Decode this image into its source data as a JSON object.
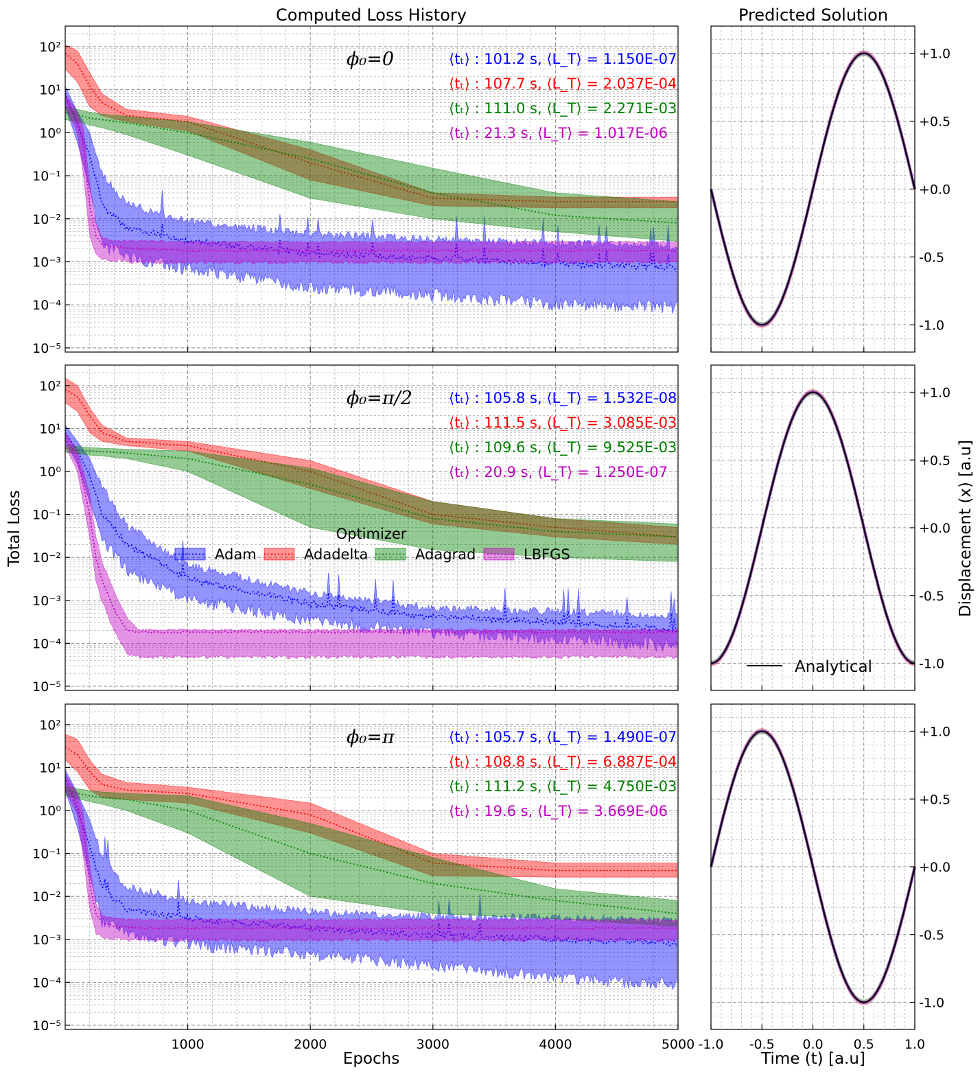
{
  "titles": {
    "left": "Computed Loss History",
    "right": "Predicted Solution"
  },
  "labels": {
    "left_y": "Total Loss",
    "left_x": "Epochs",
    "right_y": "Displacement (x) [a.u]",
    "right_x": "Time (t) [a.u]"
  },
  "legend": {
    "title": "Optimizer",
    "entries": [
      "Adam",
      "Adadelta",
      "Adagrad",
      "LBFGS"
    ]
  },
  "analytical_label": "Analytical",
  "colors": {
    "Adam": "#0000ff",
    "Adadelta": "#ff0000",
    "Adagrad": "#008000",
    "LBFGS": "#bf00bf",
    "Analytical": "#000000"
  },
  "chart_data": [
    {
      "type": "line",
      "panel": "loss",
      "row": 0,
      "phase_label": "ϕ₀=0",
      "xlabel": "",
      "ylabel": "Total Loss",
      "xlim": [
        0,
        5000
      ],
      "ylim": [
        8e-06,
        300
      ],
      "yscale": "log",
      "xticks": [
        1000,
        2000,
        3000,
        4000,
        5000
      ],
      "ytick_labels": [
        "10⁻⁵",
        "10⁻⁴",
        "10⁻³",
        "10⁻²",
        "10⁻¹",
        "10⁰",
        "10¹",
        "10²"
      ],
      "grid": true,
      "annotations": [
        {
          "series": "Adam",
          "time": "101.2 s",
          "loss": "1.150E-07"
        },
        {
          "series": "Adadelta",
          "time": "107.7 s",
          "loss": "2.037E-04"
        },
        {
          "series": "Adagrad",
          "time": "111.0 s",
          "loss": "2.271E-03"
        },
        {
          "series": "LBFGS",
          "time": "21.3 s",
          "loss": "1.017E-06"
        }
      ],
      "series": [
        {
          "name": "Adam",
          "x": [
            0,
            100,
            200,
            300,
            500,
            1000,
            2000,
            3000,
            4000,
            5000
          ],
          "mean": [
            8,
            1.5,
            0.3,
            0.02,
            0.006,
            0.003,
            0.0015,
            0.0012,
            0.0009,
            0.0007
          ],
          "lower": [
            4,
            0.6,
            0.05,
            0.003,
            0.0015,
            0.0008,
            0.0003,
            0.0002,
            0.00012,
            0.0001
          ],
          "upper": [
            12,
            3,
            1,
            0.1,
            0.02,
            0.008,
            0.004,
            0.003,
            0.0025,
            0.002
          ]
        },
        {
          "name": "Adadelta",
          "x": [
            0,
            100,
            200,
            300,
            500,
            1000,
            2000,
            3000,
            4000,
            5000
          ],
          "mean": [
            70,
            40,
            12,
            5,
            2.5,
            1.8,
            0.2,
            0.03,
            0.025,
            0.025
          ],
          "lower": [
            30,
            15,
            4,
            2.5,
            1.8,
            1.1,
            0.08,
            0.02,
            0.018,
            0.018
          ],
          "upper": [
            110,
            80,
            25,
            8,
            3.5,
            2.4,
            0.4,
            0.04,
            0.032,
            0.032
          ]
        },
        {
          "name": "Adagrad",
          "x": [
            0,
            100,
            200,
            300,
            500,
            1000,
            2000,
            3000,
            4000,
            5000
          ],
          "mean": [
            3,
            2.6,
            2.2,
            2,
            1.7,
            1,
            0.25,
            0.04,
            0.012,
            0.008
          ],
          "lower": [
            2,
            1.8,
            1.5,
            1.3,
            0.9,
            0.3,
            0.03,
            0.01,
            0.005,
            0.003
          ],
          "upper": [
            4,
            3.5,
            3,
            2.7,
            2.4,
            1.8,
            0.6,
            0.15,
            0.04,
            0.025
          ]
        },
        {
          "name": "LBFGS",
          "x": [
            0,
            100,
            150,
            200,
            250,
            300,
            400,
            600,
            1000,
            2000,
            5000
          ],
          "mean": [
            6,
            2,
            0.5,
            0.02,
            0.004,
            0.0025,
            0.0022,
            0.002,
            0.0018,
            0.0018,
            0.0018
          ],
          "lower": [
            4,
            1,
            0.1,
            0.004,
            0.0015,
            0.0012,
            0.0011,
            0.001,
            0.001,
            0.001,
            0.001
          ],
          "upper": [
            8,
            3,
            1.2,
            0.06,
            0.008,
            0.0035,
            0.003,
            0.003,
            0.0028,
            0.0028,
            0.0028
          ]
        }
      ]
    },
    {
      "type": "line",
      "panel": "solution",
      "row": 0,
      "xlim": [
        -1,
        1
      ],
      "ylim": [
        -1.2,
        1.2
      ],
      "xticks": [
        -1.0,
        -0.5,
        0.0,
        0.5,
        1.0
      ],
      "ytick_labels": [
        "-1.0",
        "-0.5",
        "+0.0",
        "+0.5",
        "+1.0"
      ],
      "grid": true,
      "series": [
        {
          "name": "Analytical",
          "function": "sin(pi*t)"
        }
      ]
    },
    {
      "type": "line",
      "panel": "loss",
      "row": 1,
      "phase_label": "ϕ₀=π/2",
      "xlabel": "",
      "ylabel": "Total Loss",
      "xlim": [
        0,
        5000
      ],
      "ylim": [
        8e-06,
        300
      ],
      "yscale": "log",
      "xticks": [
        1000,
        2000,
        3000,
        4000,
        5000
      ],
      "ytick_labels": [
        "10⁻⁵",
        "10⁻⁴",
        "10⁻³",
        "10⁻²",
        "10⁻¹",
        "10⁰",
        "10¹",
        "10²"
      ],
      "grid": true,
      "annotations": [
        {
          "series": "Adam",
          "time": "105.8 s",
          "loss": "1.532E-08"
        },
        {
          "series": "Adadelta",
          "time": "111.5 s",
          "loss": "3.085E-03"
        },
        {
          "series": "Adagrad",
          "time": "109.6 s",
          "loss": "9.525E-03"
        },
        {
          "series": "LBFGS",
          "time": "20.9 s",
          "loss": "1.250E-07"
        }
      ],
      "series": [
        {
          "name": "Adam",
          "x": [
            0,
            100,
            200,
            300,
            500,
            1000,
            2000,
            3000,
            4000,
            5000
          ],
          "mean": [
            8,
            3,
            0.8,
            0.1,
            0.02,
            0.003,
            0.0008,
            0.0004,
            0.0003,
            0.0002
          ],
          "lower": [
            5,
            1.5,
            0.2,
            0.03,
            0.006,
            0.0012,
            0.0004,
            0.0002,
            0.00015,
            0.0001
          ],
          "upper": [
            12,
            5,
            2,
            0.4,
            0.05,
            0.006,
            0.0013,
            0.0006,
            0.0005,
            0.0004
          ]
        },
        {
          "name": "Adadelta",
          "x": [
            0,
            100,
            200,
            300,
            500,
            1000,
            2000,
            3000,
            4000,
            5000
          ],
          "mean": [
            80,
            55,
            20,
            8,
            5,
            4,
            1,
            0.1,
            0.05,
            0.03
          ],
          "lower": [
            40,
            25,
            8,
            5,
            4,
            3,
            0.4,
            0.06,
            0.03,
            0.02
          ],
          "upper": [
            150,
            100,
            30,
            12,
            6,
            5,
            1.8,
            0.2,
            0.08,
            0.05
          ]
        },
        {
          "name": "Adagrad",
          "x": [
            0,
            100,
            200,
            300,
            500,
            1000,
            2000,
            3000,
            4000,
            5000
          ],
          "mean": [
            3.5,
            3.2,
            3,
            2.9,
            2.7,
            2,
            0.5,
            0.08,
            0.04,
            0.03
          ],
          "lower": [
            2.8,
            2.6,
            2.4,
            2.3,
            2,
            1,
            0.05,
            0.015,
            0.01,
            0.008
          ],
          "upper": [
            4.2,
            3.8,
            3.6,
            3.5,
            3.3,
            3,
            1.2,
            0.2,
            0.08,
            0.06
          ]
        },
        {
          "name": "LBFGS",
          "x": [
            0,
            100,
            200,
            250,
            300,
            400,
            500,
            600,
            1000,
            2000,
            5000
          ],
          "mean": [
            6,
            2,
            0.1,
            0.01,
            0.003,
            0.0006,
            0.0002,
            0.00018,
            0.00018,
            0.00018,
            0.00018
          ],
          "lower": [
            4,
            1,
            0.03,
            0.003,
            0.001,
            0.0002,
            6e-05,
            5e-05,
            5e-05,
            5e-05,
            5e-05
          ],
          "upper": [
            8,
            3,
            0.3,
            0.03,
            0.008,
            0.0015,
            0.0004,
            0.0002,
            0.0002,
            0.0002,
            0.0002
          ]
        }
      ]
    },
    {
      "type": "line",
      "panel": "solution",
      "row": 1,
      "xlim": [
        -1,
        1
      ],
      "ylim": [
        -1.2,
        1.2
      ],
      "xticks": [
        -1.0,
        -0.5,
        0.0,
        0.5,
        1.0
      ],
      "ytick_labels": [
        "-1.0",
        "-0.5",
        "+0.0",
        "+0.5",
        "+1.0"
      ],
      "grid": true,
      "series": [
        {
          "name": "Analytical",
          "function": "cos(pi*t)"
        }
      ]
    },
    {
      "type": "line",
      "panel": "loss",
      "row": 2,
      "phase_label": "ϕ₀=π",
      "xlabel": "Epochs",
      "ylabel": "Total Loss",
      "xlim": [
        0,
        5000
      ],
      "ylim": [
        8e-06,
        300
      ],
      "yscale": "log",
      "xticks": [
        1000,
        2000,
        3000,
        4000,
        5000
      ],
      "ytick_labels": [
        "10⁻⁵",
        "10⁻⁴",
        "10⁻³",
        "10⁻²",
        "10⁻¹",
        "10⁰",
        "10¹",
        "10²"
      ],
      "grid": true,
      "annotations": [
        {
          "series": "Adam",
          "time": "105.7 s",
          "loss": "1.490E-07"
        },
        {
          "series": "Adadelta",
          "time": "108.8 s",
          "loss": "6.887E-04"
        },
        {
          "series": "Adagrad",
          "time": "111.2 s",
          "loss": "4.750E-03"
        },
        {
          "series": "LBFGS",
          "time": "19.6 s",
          "loss": "3.669E-06"
        }
      ],
      "series": [
        {
          "name": "Adam",
          "x": [
            0,
            100,
            200,
            300,
            500,
            1000,
            2000,
            3000,
            4000,
            5000
          ],
          "mean": [
            6,
            1,
            0.15,
            0.015,
            0.005,
            0.003,
            0.0018,
            0.0012,
            0.001,
            0.0008
          ],
          "lower": [
            3,
            0.4,
            0.03,
            0.003,
            0.0015,
            0.0009,
            0.0005,
            0.0003,
            0.00015,
            0.0001
          ],
          "upper": [
            9,
            2.5,
            0.6,
            0.08,
            0.015,
            0.007,
            0.004,
            0.003,
            0.0028,
            0.0025
          ]
        },
        {
          "name": "Adadelta",
          "x": [
            0,
            100,
            200,
            300,
            500,
            1000,
            2000,
            3000,
            4000,
            5000
          ],
          "mean": [
            30,
            20,
            8,
            4,
            3,
            2.5,
            0.8,
            0.06,
            0.04,
            0.04
          ],
          "lower": [
            15,
            8,
            3,
            2,
            1.8,
            1.5,
            0.3,
            0.03,
            0.028,
            0.028
          ],
          "upper": [
            60,
            45,
            15,
            7,
            4.5,
            3.5,
            1.5,
            0.1,
            0.06,
            0.06
          ]
        },
        {
          "name": "Adagrad",
          "x": [
            0,
            100,
            200,
            300,
            500,
            1000,
            2000,
            3000,
            4000,
            5000
          ],
          "mean": [
            3,
            2.5,
            2.2,
            2,
            1.8,
            1,
            0.1,
            0.02,
            0.008,
            0.004
          ],
          "lower": [
            2.2,
            1.9,
            1.6,
            1.4,
            1,
            0.3,
            0.01,
            0.004,
            0.003,
            0.002
          ],
          "upper": [
            3.8,
            3.2,
            2.9,
            2.7,
            2.5,
            2.2,
            0.5,
            0.08,
            0.015,
            0.008
          ]
        },
        {
          "name": "LBFGS",
          "x": [
            0,
            100,
            150,
            200,
            250,
            300,
            400,
            600,
            1000,
            2000,
            5000
          ],
          "mean": [
            5,
            1.5,
            0.3,
            0.02,
            0.004,
            0.0025,
            0.002,
            0.0018,
            0.0018,
            0.0018,
            0.0018
          ],
          "lower": [
            3,
            0.8,
            0.08,
            0.005,
            0.0015,
            0.0012,
            0.0011,
            0.001,
            0.001,
            0.001,
            0.001
          ],
          "upper": [
            7,
            2.5,
            0.8,
            0.05,
            0.007,
            0.0035,
            0.003,
            0.0028,
            0.0028,
            0.0028,
            0.0028
          ]
        }
      ]
    },
    {
      "type": "line",
      "panel": "solution",
      "row": 2,
      "xlabel": "Time (t) [a.u]",
      "xlim": [
        -1,
        1
      ],
      "ylim": [
        -1.2,
        1.2
      ],
      "xticks": [
        -1.0,
        -0.5,
        0.0,
        0.5,
        1.0
      ],
      "ytick_labels": [
        "-1.0",
        "-0.5",
        "+0.0",
        "+0.5",
        "+1.0"
      ],
      "grid": true,
      "series": [
        {
          "name": "Analytical",
          "function": "-sin(pi*t)"
        }
      ]
    }
  ]
}
